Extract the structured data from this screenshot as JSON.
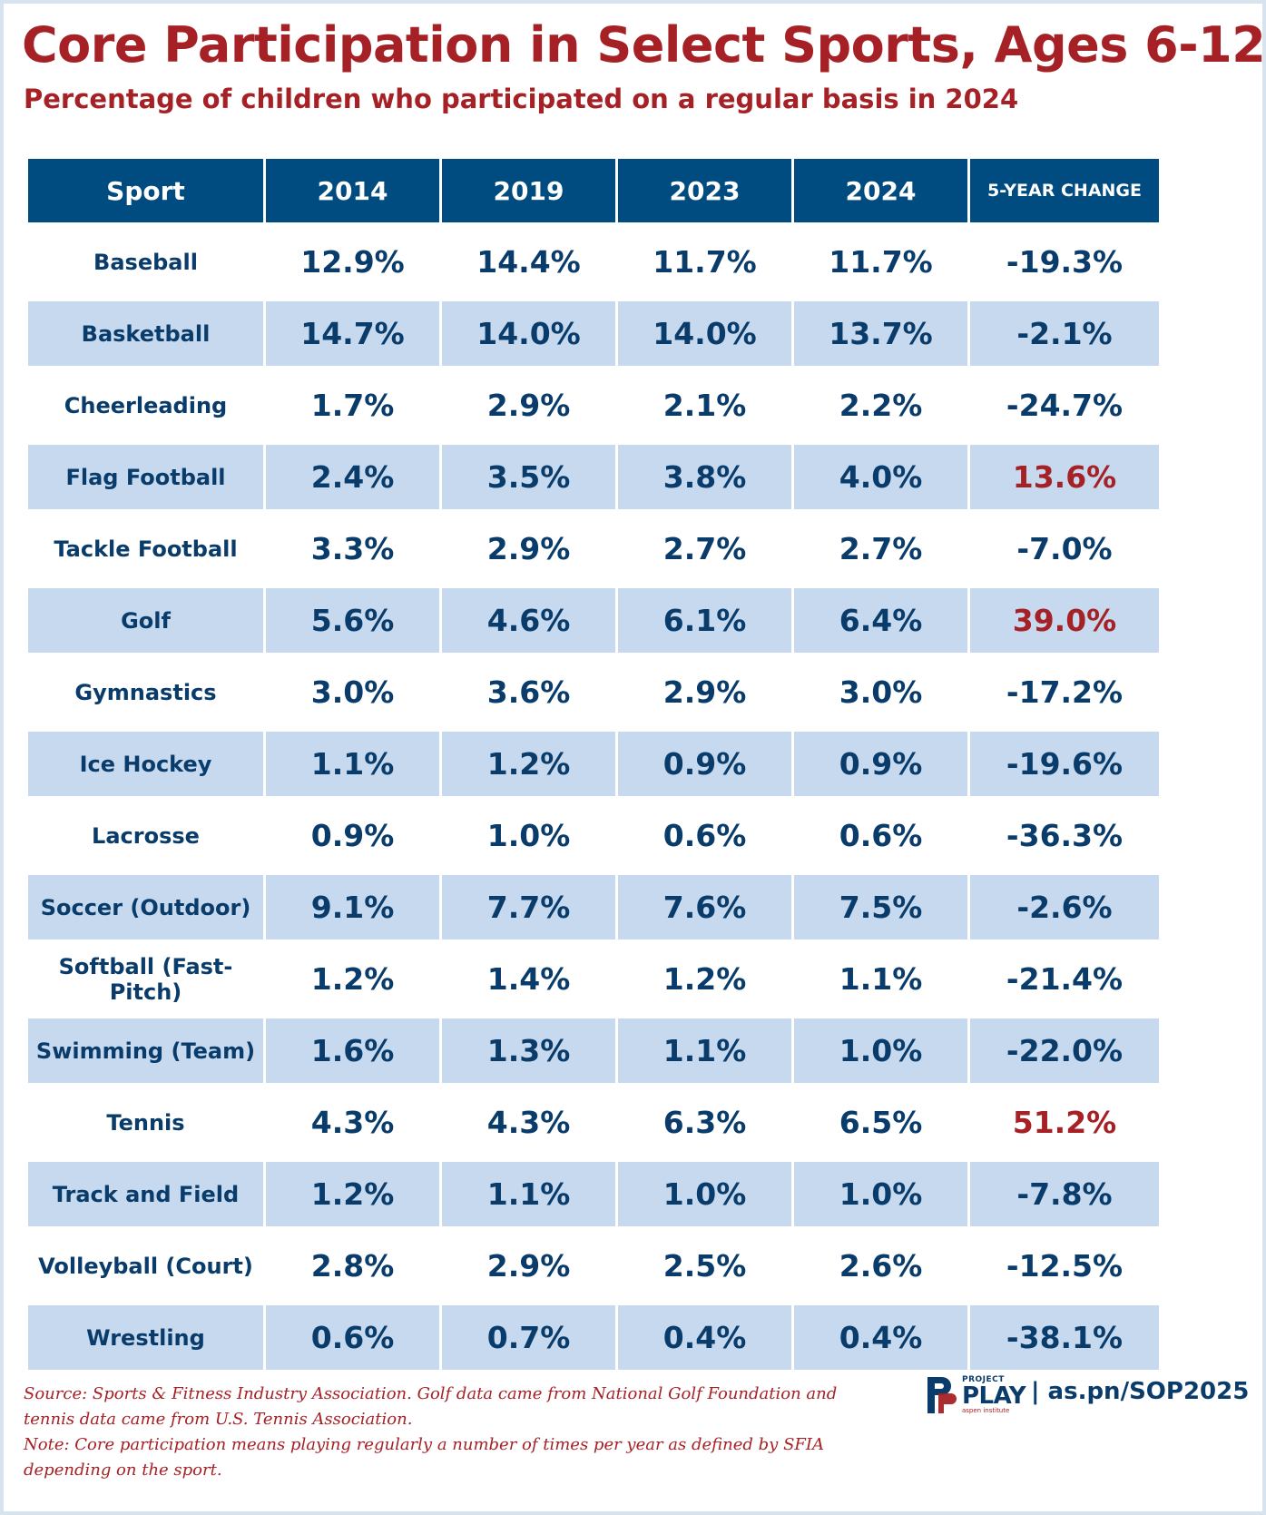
{
  "chart_data": {
    "type": "table",
    "title": "Core Participation in Select Sports, Ages 6-12",
    "subtitle": "Percentage of children who participated on a regular basis in 2024",
    "columns": [
      "Sport",
      "2014",
      "2019",
      "2023",
      "2024",
      "5-YEAR CHANGE"
    ],
    "rows": [
      {
        "sport": "Baseball",
        "y2014": "12.9%",
        "y2019": "14.4%",
        "y2023": "11.7%",
        "y2024": "11.7%",
        "change": "-19.3%"
      },
      {
        "sport": "Basketball",
        "y2014": "14.7%",
        "y2019": "14.0%",
        "y2023": "14.0%",
        "y2024": "13.7%",
        "change": "-2.1%"
      },
      {
        "sport": "Cheerleading",
        "y2014": "1.7%",
        "y2019": "2.9%",
        "y2023": "2.1%",
        "y2024": "2.2%",
        "change": "-24.7%"
      },
      {
        "sport": "Flag Football",
        "y2014": "2.4%",
        "y2019": "3.5%",
        "y2023": "3.8%",
        "y2024": "4.0%",
        "change": "13.6%"
      },
      {
        "sport": "Tackle Football",
        "y2014": "3.3%",
        "y2019": "2.9%",
        "y2023": "2.7%",
        "y2024": "2.7%",
        "change": "-7.0%"
      },
      {
        "sport": "Golf",
        "y2014": "5.6%",
        "y2019": "4.6%",
        "y2023": "6.1%",
        "y2024": "6.4%",
        "change": "39.0%"
      },
      {
        "sport": "Gymnastics",
        "y2014": "3.0%",
        "y2019": "3.6%",
        "y2023": "2.9%",
        "y2024": "3.0%",
        "change": "-17.2%"
      },
      {
        "sport": "Ice Hockey",
        "y2014": "1.1%",
        "y2019": "1.2%",
        "y2023": "0.9%",
        "y2024": "0.9%",
        "change": "-19.6%"
      },
      {
        "sport": "Lacrosse",
        "y2014": "0.9%",
        "y2019": "1.0%",
        "y2023": "0.6%",
        "y2024": "0.6%",
        "change": "-36.3%"
      },
      {
        "sport": "Soccer (Outdoor)",
        "y2014": "9.1%",
        "y2019": "7.7%",
        "y2023": "7.6%",
        "y2024": "7.5%",
        "change": "-2.6%"
      },
      {
        "sport": "Softball (Fast-Pitch)",
        "y2014": "1.2%",
        "y2019": "1.4%",
        "y2023": "1.2%",
        "y2024": "1.1%",
        "change": "-21.4%"
      },
      {
        "sport": "Swimming (Team)",
        "y2014": "1.6%",
        "y2019": "1.3%",
        "y2023": "1.1%",
        "y2024": "1.0%",
        "change": "-22.0%"
      },
      {
        "sport": "Tennis",
        "y2014": "4.3%",
        "y2019": "4.3%",
        "y2023": "6.3%",
        "y2024": "6.5%",
        "change": "51.2%"
      },
      {
        "sport": "Track and Field",
        "y2014": "1.2%",
        "y2019": "1.1%",
        "y2023": "1.0%",
        "y2024": "1.0%",
        "change": "-7.8%"
      },
      {
        "sport": "Volleyball (Court)",
        "y2014": "2.8%",
        "y2019": "2.9%",
        "y2023": "2.5%",
        "y2024": "2.6%",
        "change": "-12.5%"
      },
      {
        "sport": "Wrestling",
        "y2014": "0.6%",
        "y2019": "0.7%",
        "y2023": "0.4%",
        "y2024": "0.4%",
        "change": "-38.1%"
      }
    ]
  },
  "footer": {
    "source": "Source: Sports & Fitness Industry Association. Golf data came from National Golf Foundation and tennis data came from U.S. Tennis Association.",
    "note": "Note: Core participation means playing regularly a number of times per year as defined by SFIA depending on the sport.",
    "logo_small": "PROJECT",
    "logo_big": "PLAY",
    "logo_tiny": "aspen institute",
    "url": "| as.pn/SOP2025"
  },
  "colors": {
    "title": "#a62126",
    "header_bg": "#004b80",
    "row_alt_bg": "#c6d9ee",
    "text": "#0a3c6b",
    "positive_change": "#a62126"
  }
}
